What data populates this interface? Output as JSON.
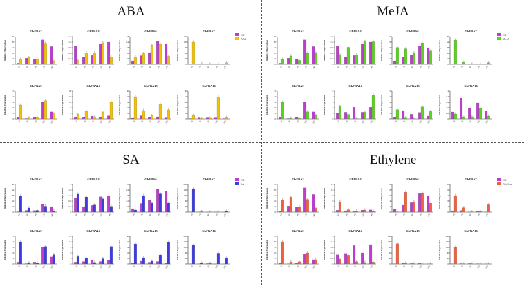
{
  "colors": {
    "ck": "#bb3fcc",
    "ABA": "#f2c200",
    "MeJA": "#5ad21e",
    "SA": "#3c3ce0",
    "Ethylene": "#f0623e"
  },
  "common": {
    "ylabel": "Relative Expression",
    "xticks": [
      "1h",
      "3h",
      "6h",
      "12h",
      "24h"
    ],
    "ck_label": "CK"
  },
  "chart_data": [
    {
      "type": "bar",
      "treatment": "ABA",
      "legend": [
        "CK",
        "ABA"
      ],
      "charts": [
        {
          "title": "GhFBA3",
          "ylim": [
            0,
            25
          ],
          "ck": [
            1,
            5.5,
            4.5,
            22,
            16
          ],
          "tr": [
            4.5,
            6,
            4.5,
            19,
            2.5
          ]
        },
        {
          "title": "GhFBA4",
          "ylim": [
            0,
            1.5
          ],
          "ck": [
            1,
            0.4,
            0.48,
            1.12,
            1.2
          ],
          "tr": [
            0.2,
            0.62,
            0.62,
            1.15,
            0.4
          ]
        },
        {
          "title": "GhFBA6",
          "ylim": [
            0,
            8
          ],
          "ck": [
            1,
            2.5,
            3.4,
            6.7,
            6
          ],
          "tr": [
            2.1,
            3.1,
            5.5,
            5.8,
            2.3
          ]
        },
        {
          "title": "GhFBA7",
          "ylim": [
            0,
            150
          ],
          "ck": [
            1,
            1.2,
            0.2,
            0.4,
            0.2
          ],
          "tr": [
            120,
            3,
            0.2,
            0.3,
            8
          ]
        },
        {
          "title": "GhFBA9",
          "ylim": [
            0,
            15
          ],
          "ck": [
            1,
            0.2,
            1,
            9,
            3.8
          ],
          "tr": [
            7.5,
            0.4,
            0.6,
            9.8,
            2.7
          ]
        },
        {
          "title": "GhFBA14",
          "ylim": [
            0,
            20
          ],
          "ck": [
            1,
            1.2,
            2,
            1.2,
            2.2
          ],
          "tr": [
            3.3,
            5.5,
            1.5,
            4.8,
            12
          ]
        },
        {
          "title": "GhFBA15",
          "ylim": [
            0,
            40
          ],
          "ck": [
            1,
            4.5,
            2.5,
            3,
            1.5
          ],
          "tr": [
            32,
            12,
            4.5,
            21,
            13
          ]
        },
        {
          "title": "GhFBA16",
          "ylim": [
            0,
            80
          ],
          "ck": [
            1,
            3,
            3,
            3,
            1
          ],
          "tr": [
            10,
            1,
            2,
            63,
            4
          ]
        }
      ]
    },
    {
      "type": "bar",
      "treatment": "MeJA",
      "legend": [
        "CK",
        "MeJA"
      ],
      "charts": [
        {
          "title": "GhFBA3",
          "ylim": [
            0,
            25
          ],
          "ck": [
            1,
            5.5,
            4.5,
            22,
            16
          ],
          "tr": [
            4.5,
            7.5,
            3.5,
            10,
            10
          ]
        },
        {
          "title": "GhFBA4",
          "ylim": [
            0,
            1.5
          ],
          "ck": [
            1,
            0.4,
            0.48,
            1.12,
            1.2
          ],
          "tr": [
            0.52,
            0.92,
            0.52,
            1.22,
            1.22
          ]
        },
        {
          "title": "GhFBA6",
          "ylim": [
            0,
            10
          ],
          "ck": [
            1,
            2.5,
            3.4,
            6.7,
            6
          ],
          "tr": [
            6.1,
            5.6,
            4.1,
            7.7,
            4.8
          ]
        },
        {
          "title": "GhFBA7",
          "ylim": [
            0,
            80
          ],
          "ck": [
            1,
            1.5,
            0.2,
            1,
            0.3
          ],
          "tr": [
            70,
            5.5,
            0.2,
            0.2,
            4.5
          ]
        },
        {
          "title": "GhFBA9",
          "ylim": [
            0,
            15
          ],
          "ck": [
            1,
            0.2,
            1,
            9,
            3.8
          ],
          "tr": [
            9,
            0.3,
            0.3,
            3.8,
            1.8
          ]
        },
        {
          "title": "GhFBA14",
          "ylim": [
            0,
            5
          ],
          "ck": [
            1,
            1.2,
            2.1,
            1.2,
            2.1
          ],
          "tr": [
            2.2,
            0.8,
            0.05,
            1.2,
            4.3
          ]
        },
        {
          "title": "GhFBA15",
          "ylim": [
            0,
            15
          ],
          "ck": [
            1,
            4.5,
            2.5,
            3.5,
            1.5
          ],
          "tr": [
            5,
            0.5,
            0.1,
            6.5,
            4
          ]
        },
        {
          "title": "GhFBA16",
          "ylim": [
            0,
            4
          ],
          "ck": [
            1,
            3,
            1.6,
            2.3,
            1.1
          ],
          "tr": [
            0.7,
            0.2,
            0.3,
            1.5,
            0.4
          ]
        }
      ]
    },
    {
      "type": "bar",
      "treatment": "SA",
      "legend": [
        "CK",
        "SA"
      ],
      "charts": [
        {
          "title": "GhFBA3",
          "ylim": [
            0,
            80
          ],
          "ck": [
            1,
            5,
            4.5,
            22,
            16
          ],
          "tr": [
            47,
            12,
            5,
            17,
            3
          ]
        },
        {
          "title": "GhFBA4",
          "ylim": [
            0,
            2
          ],
          "ck": [
            1,
            0.4,
            0.48,
            1.12,
            1.2
          ],
          "tr": [
            1.3,
            1.1,
            0.52,
            0.96,
            0.42
          ]
        },
        {
          "title": "GhFBA6",
          "ylim": [
            0,
            8
          ],
          "ck": [
            1,
            2.5,
            3.4,
            6.7,
            6
          ],
          "tr": [
            0.6,
            4.8,
            2.6,
            5.3,
            2.6
          ]
        },
        {
          "title": "GhFBA7",
          "ylim": [
            0,
            200
          ],
          "ck": [
            1,
            1.3,
            0.2,
            0.8,
            0.3
          ],
          "tr": [
            170,
            2.5,
            0.2,
            0.8,
            6
          ]
        },
        {
          "title": "GhFBA9",
          "ylim": [
            0,
            15
          ],
          "ck": [
            1,
            0.2,
            1,
            9,
            3.8
          ],
          "tr": [
            12,
            0.5,
            0.6,
            9.5,
            5
          ]
        },
        {
          "title": "GhFBA14",
          "ylim": [
            0,
            15
          ],
          "ck": [
            1,
            1.3,
            2,
            1.3,
            2.2
          ],
          "tr": [
            4,
            3,
            0.8,
            2.8,
            9.5
          ]
        },
        {
          "title": "GhFBA15",
          "ylim": [
            0,
            40
          ],
          "ck": [
            1,
            4,
            2.5,
            3.5,
            1.5
          ],
          "tr": [
            29,
            9,
            4,
            13,
            31
          ]
        },
        {
          "title": "GhFBA16",
          "ylim": [
            0,
            200
          ],
          "ck": [
            1,
            2,
            3,
            1,
            0.5
          ],
          "tr": [
            135,
            5,
            3,
            78,
            42
          ]
        }
      ]
    },
    {
      "type": "bar",
      "treatment": "Ethylene",
      "legend": [
        "CK",
        "Ethylene"
      ],
      "charts": [
        {
          "title": "GhFBA3",
          "ylim": [
            0,
            25
          ],
          "ck": [
            1,
            5.5,
            4.5,
            22,
            16
          ],
          "tr": [
            11,
            13.5,
            5,
            11.5,
            3.5
          ]
        },
        {
          "title": "GhFBA4",
          "ylim": [
            0,
            15
          ],
          "ck": [
            1,
            0.4,
            0.5,
            1.1,
            1.2
          ],
          "tr": [
            5.5,
            1.3,
            0.7,
            1.1,
            0.5
          ]
        },
        {
          "title": "GhFBA6",
          "ylim": [
            0,
            10
          ],
          "ck": [
            1,
            2.5,
            3.4,
            6.7,
            6
          ],
          "tr": [
            0.1,
            7.2,
            3.6,
            7,
            3.2
          ]
        },
        {
          "title": "GhFBA7",
          "ylim": [
            0,
            20
          ],
          "ck": [
            1,
            1.2,
            0.2,
            0.8,
            0.2
          ],
          "tr": [
            12,
            3.2,
            0.2,
            0.5,
            5.3
          ]
        },
        {
          "title": "GhFBA9",
          "ylim": [
            0,
            25
          ],
          "ck": [
            1,
            0.2,
            1,
            9,
            3.8
          ],
          "tr": [
            20,
            1.8,
            2,
            10,
            3.5
          ]
        },
        {
          "title": "GhFBA14",
          "ylim": [
            0,
            3
          ],
          "ck": [
            1,
            1.15,
            2,
            1.2,
            2.1
          ],
          "tr": [
            0.5,
            0.95,
            0.25,
            0.15,
            0.2
          ]
        },
        {
          "title": "GhFBA15",
          "ylim": [
            0,
            150
          ],
          "ck": [
            1,
            4.5,
            2.5,
            3.5,
            1.5
          ],
          "tr": [
            110,
            3.5,
            1,
            0.1,
            0.4
          ]
        },
        {
          "title": "GhFBA16",
          "ylim": [
            0,
            200
          ],
          "ck": [
            1,
            3,
            3,
            2.3,
            1.1
          ],
          "tr": [
            120,
            0.5,
            0.5,
            0.1,
            0.5
          ]
        }
      ]
    }
  ]
}
